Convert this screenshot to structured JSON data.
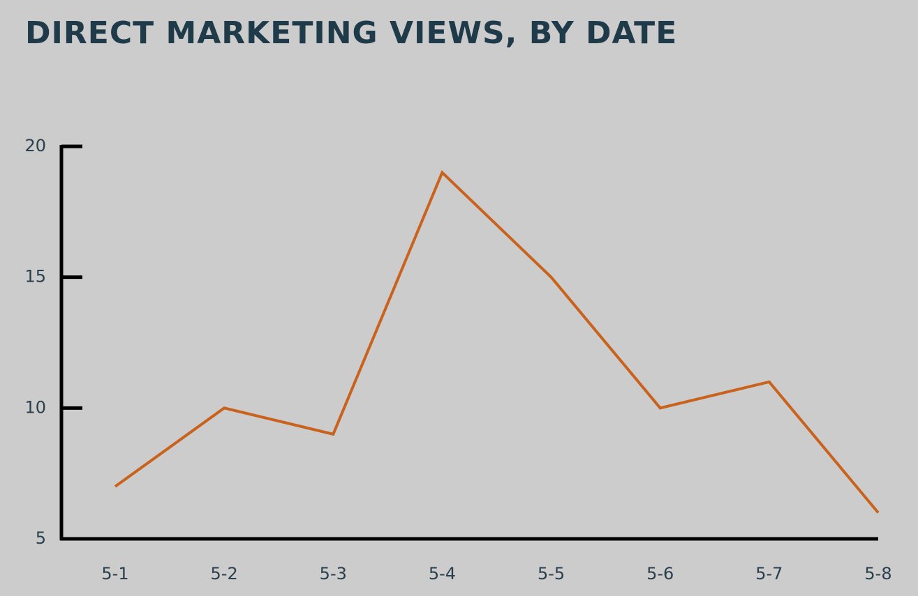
{
  "chart_data": {
    "type": "line",
    "title": "DIRECT MARKETING VIEWS, BY DATE",
    "categories": [
      "5-1",
      "5-2",
      "5-3",
      "5-4",
      "5-5",
      "5-6",
      "5-7",
      "5-8"
    ],
    "values": [
      7,
      10,
      9,
      19,
      15,
      10,
      11,
      6
    ],
    "color": "#c8621c",
    "ylim": [
      5,
      20
    ],
    "yticks": [
      5,
      10,
      15,
      20
    ],
    "grid": false
  }
}
